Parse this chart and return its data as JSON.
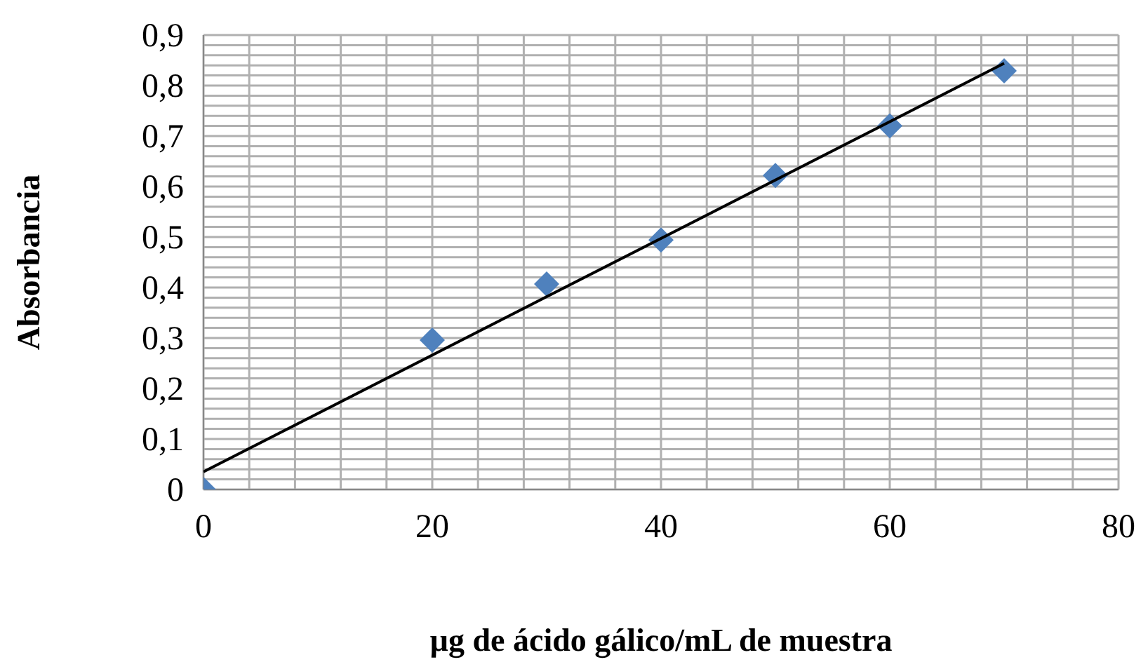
{
  "chart_data": {
    "type": "scatter",
    "xlabel": "µg de ácido gálico/mL de muestra",
    "ylabel": "Absorbancia",
    "marker": "diamond",
    "grid": true,
    "xlim": [
      0,
      80
    ],
    "ylim": [
      0,
      0.9
    ],
    "xticks": [
      0,
      {
        "value": 4,
        "label": null
      },
      {
        "value": 8,
        "label": null
      },
      {
        "value": 12,
        "label": null
      },
      {
        "value": 16,
        "label": null
      },
      20,
      {
        "value": 24,
        "label": null
      },
      {
        "value": 28,
        "label": null
      },
      {
        "value": 32,
        "label": null
      },
      {
        "value": 36,
        "label": null
      },
      40,
      {
        "value": 44,
        "label": null
      },
      {
        "value": 48,
        "label": null
      },
      {
        "value": 52,
        "label": null
      },
      {
        "value": 56,
        "label": null
      },
      60,
      {
        "value": 64,
        "label": null
      },
      {
        "value": 68,
        "label": null
      },
      {
        "value": 72,
        "label": null
      },
      {
        "value": 76,
        "label": null
      },
      80
    ],
    "yticks": [
      0,
      {
        "value": 0.02,
        "label": null
      },
      {
        "value": 0.04,
        "label": null
      },
      {
        "value": 0.06,
        "label": null
      },
      {
        "value": 0.08,
        "label": null
      },
      {
        "value": 0.1,
        "label": "0,1"
      },
      {
        "value": 0.12,
        "label": null
      },
      {
        "value": 0.14,
        "label": null
      },
      {
        "value": 0.16,
        "label": null
      },
      {
        "value": 0.18,
        "label": null
      },
      {
        "value": 0.2,
        "label": "0,2"
      },
      {
        "value": 0.22,
        "label": null
      },
      {
        "value": 0.24,
        "label": null
      },
      {
        "value": 0.26,
        "label": null
      },
      {
        "value": 0.28,
        "label": null
      },
      {
        "value": 0.3,
        "label": "0,3"
      },
      {
        "value": 0.32,
        "label": null
      },
      {
        "value": 0.34,
        "label": null
      },
      {
        "value": 0.36,
        "label": null
      },
      {
        "value": 0.38,
        "label": null
      },
      {
        "value": 0.4,
        "label": "0,4"
      },
      {
        "value": 0.42,
        "label": null
      },
      {
        "value": 0.44,
        "label": null
      },
      {
        "value": 0.46,
        "label": null
      },
      {
        "value": 0.48,
        "label": null
      },
      {
        "value": 0.5,
        "label": "0,5"
      },
      {
        "value": 0.52,
        "label": null
      },
      {
        "value": 0.54,
        "label": null
      },
      {
        "value": 0.56,
        "label": null
      },
      {
        "value": 0.58,
        "label": null
      },
      {
        "value": 0.6,
        "label": "0,6"
      },
      {
        "value": 0.62,
        "label": null
      },
      {
        "value": 0.64,
        "label": null
      },
      {
        "value": 0.66,
        "label": null
      },
      {
        "value": 0.68,
        "label": null
      },
      {
        "value": 0.7,
        "label": "0,7"
      },
      {
        "value": 0.72,
        "label": null
      },
      {
        "value": 0.74,
        "label": null
      },
      {
        "value": 0.76,
        "label": null
      },
      {
        "value": 0.78,
        "label": null
      },
      {
        "value": 0.8,
        "label": "0,8"
      },
      {
        "value": 0.82,
        "label": null
      },
      {
        "value": 0.84,
        "label": null
      },
      {
        "value": 0.86,
        "label": null
      },
      {
        "value": 0.88,
        "label": null
      },
      {
        "value": 0.9,
        "label": "0,9"
      }
    ],
    "series": [
      {
        "color": "#4f81bd",
        "x": [
          0,
          20,
          30,
          40,
          50,
          60,
          70
        ],
        "values": [
          0,
          0.296,
          0.407,
          0.494,
          0.622,
          0.72,
          0.829
        ]
      },
      {
        "type": "line",
        "color": "#000000",
        "marker": "none",
        "line_style": "solid",
        "x": [
          0,
          70
        ],
        "values": [
          0.035,
          0.844
        ]
      }
    ]
  }
}
